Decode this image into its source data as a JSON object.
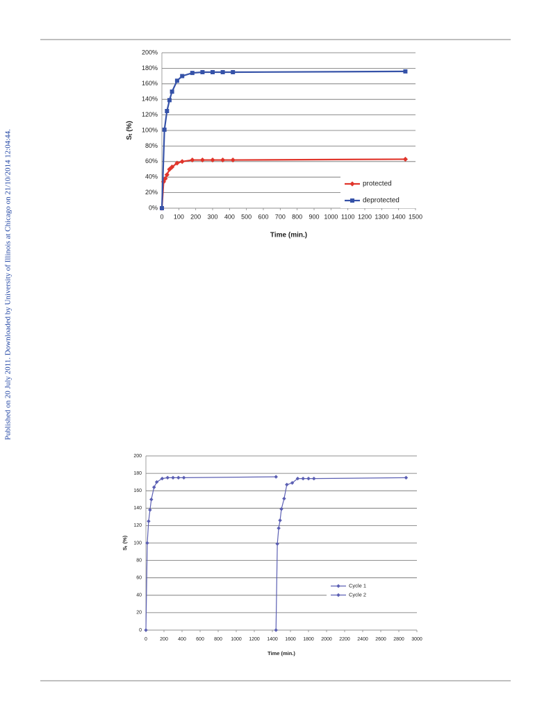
{
  "watermark": "Published on 20 July 2011. Downloaded by University of Illinois at Chicago on 21/10/2014 12:04:44.",
  "chart_data": [
    {
      "type": "line",
      "xlabel": "Time (min.)",
      "ylabel": "S",
      "ylabel_sub": "t",
      "ylabel_unit": "(%)",
      "xlim": [
        0,
        1500
      ],
      "xticks": [
        0,
        100,
        200,
        300,
        400,
        500,
        600,
        700,
        800,
        900,
        1000,
        1100,
        1200,
        1300,
        1400,
        1500
      ],
      "ylim": [
        0,
        200
      ],
      "yticks": [
        {
          "value": 0,
          "label": "0%"
        },
        {
          "value": 20,
          "label": "20%"
        },
        {
          "value": 40,
          "label": "40%"
        },
        {
          "value": 60,
          "label": "60%"
        },
        {
          "value": 80,
          "label": "80%"
        },
        {
          "value": 100,
          "label": "100%"
        },
        {
          "value": 120,
          "label": "120%"
        },
        {
          "value": 140,
          "label": "140%"
        },
        {
          "value": 160,
          "label": "160%"
        },
        {
          "value": 180,
          "label": "180%"
        },
        {
          "value": 200,
          "label": "200%"
        }
      ],
      "grid": true,
      "legend": "lower right",
      "series": [
        {
          "name": "protected",
          "color": "#e0352b",
          "marker": "diamond",
          "x": [
            0,
            10,
            20,
            30,
            45,
            60,
            90,
            120,
            180,
            240,
            300,
            360,
            420,
            1440
          ],
          "values": [
            0,
            34,
            38,
            43,
            50,
            53,
            58,
            60,
            62,
            62,
            62,
            62,
            62,
            63
          ]
        },
        {
          "name": "deprotected",
          "color": "#3552a8",
          "marker": "square",
          "x": [
            0,
            15,
            30,
            45,
            60,
            90,
            120,
            180,
            240,
            300,
            360,
            420,
            1440
          ],
          "values": [
            0,
            101,
            125,
            139,
            150,
            164,
            170,
            174,
            175,
            175,
            175,
            175,
            176
          ]
        }
      ]
    },
    {
      "type": "line",
      "xlabel": "Time (min.)",
      "ylabel": "S",
      "ylabel_sub": "t",
      "ylabel_unit": "(%)",
      "xlim": [
        0,
        3000
      ],
      "xticks": [
        0,
        200,
        400,
        600,
        800,
        1000,
        1200,
        1400,
        1600,
        1800,
        2000,
        2200,
        2400,
        2600,
        2800,
        3000
      ],
      "ylim": [
        0,
        200
      ],
      "yticks": [
        0,
        20,
        40,
        60,
        80,
        100,
        120,
        140,
        160,
        180,
        200
      ],
      "grid": true,
      "legend": "lower right",
      "series": [
        {
          "name": "Cycle 1",
          "color": "#5b5fb3",
          "marker": "diamond",
          "x": [
            0,
            15,
            30,
            45,
            60,
            90,
            120,
            180,
            240,
            300,
            360,
            420,
            1440
          ],
          "values": [
            0,
            100,
            125,
            138,
            150,
            164,
            170,
            174,
            175,
            175,
            175,
            175,
            176
          ]
        },
        {
          "name": "Cycle 2",
          "color": "#5b5fb3",
          "marker": "diamond",
          "x": [
            1440,
            1455,
            1470,
            1485,
            1500,
            1530,
            1560,
            1620,
            1680,
            1740,
            1800,
            1860,
            2880
          ],
          "values": [
            0,
            99,
            117,
            126,
            139,
            151,
            167,
            169,
            174,
            174,
            174,
            174,
            175
          ]
        }
      ]
    }
  ]
}
